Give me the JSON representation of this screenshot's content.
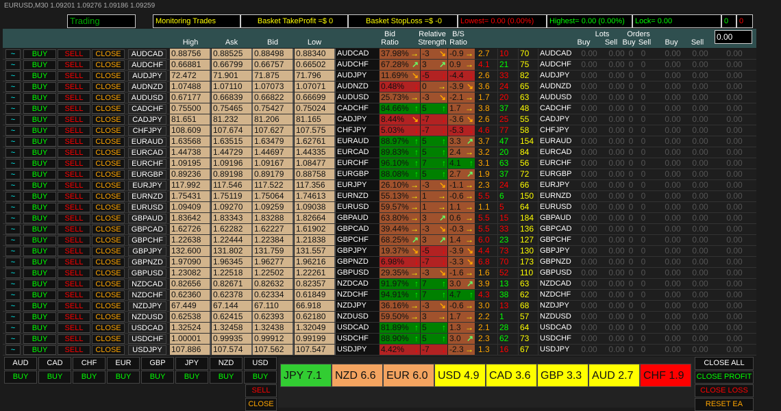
{
  "window": {
    "title": "EURUSD,M30  1.09201 1.09276 1.09186 1.09259"
  },
  "topbar": {
    "status": "Trading",
    "monitoring": "Monitoring Trades",
    "take_profit": "Basket TakeProfit =$ 0",
    "stop_loss": "Basket StopLoss =$ -0",
    "lowest": "Lowest= 0.00 (0.00%)",
    "highest": "Highest= 0.00 (0.00%)",
    "lock": "Lock= 0.00",
    "count_buy": "0",
    "count_sell": "0"
  },
  "header": {
    "high": "High",
    "ask": "Ask",
    "bid": "Bid",
    "low": "Low",
    "bid_ratio_1": "Bid",
    "bid_ratio_2": "Ratio",
    "rel_1": "Relative",
    "rel_2": "Strength",
    "bs_1": "B/S",
    "bs_2": "Ratio",
    "lots": "Lots",
    "orders": "Orders",
    "buy": "Buy",
    "sell": "Sell",
    "lot_value": "0.00"
  },
  "row_buttons": {
    "tilde": "~",
    "buy": "BUY",
    "sell": "SELL",
    "close": "CLOSE"
  },
  "zero2": "0.00",
  "zero0": "0",
  "colors": {
    "tan": "#d2b48c",
    "brown": "#a0522d",
    "red": "#b22222",
    "green": "#008000",
    "yellow": "#ffff00",
    "orange": "#ffa500",
    "header": "#2f4f4f"
  },
  "rows": [
    [
      "AUDCAD",
      "0.88756",
      "0.88525",
      "0.88498",
      "0.88340",
      "37.98%",
      "-3",
      "-0.9",
      "2.7",
      "10",
      "70",
      "r",
      "right",
      "down-right",
      "right"
    ],
    [
      "AUDCHF",
      "0.66881",
      "0.66799",
      "0.66757",
      "0.66502",
      "67.28%",
      "3",
      "0.9",
      "4.1",
      "21",
      "75",
      "g",
      "up-right",
      "up-right",
      "right"
    ],
    [
      "AUDJPY",
      "72.472",
      "71.901",
      "71.875",
      "71.796",
      "11.69%",
      "-5",
      "-4.4",
      "2.6",
      "33",
      "82",
      "r",
      "down-right",
      "down",
      "down"
    ],
    [
      "AUDNZD",
      "1.07488",
      "1.07110",
      "1.07073",
      "1.07071",
      "0.48%",
      "0",
      "-3.9",
      "3.6",
      "24",
      "65",
      "r",
      "down",
      "right",
      "down-right"
    ],
    [
      "AUDUSD",
      "0.67177",
      "0.66839",
      "0.66822",
      "0.66699",
      "25.73%",
      "-3",
      "-2.1",
      "1.7",
      "20",
      "63",
      "r",
      "right",
      "down-right",
      "right"
    ],
    [
      "CADCHF",
      "0.75500",
      "0.75465",
      "0.75427",
      "0.75024",
      "84.66%",
      "5",
      "1.7",
      "3.8",
      "37",
      "48",
      "g",
      "up",
      "up",
      "right"
    ],
    [
      "CADJPY",
      "81.651",
      "81.232",
      "81.206",
      "81.165",
      "8.44%",
      "-7",
      "-3.6",
      "2.6",
      "25",
      "55",
      "r",
      "down-right",
      "down",
      "down-right"
    ],
    [
      "CHFJPY",
      "108.609",
      "107.674",
      "107.627",
      "107.575",
      "5.03%",
      "-7",
      "-5.3",
      "4.6",
      "77",
      "58",
      "r",
      "down",
      "down",
      "down"
    ],
    [
      "EURAUD",
      "1.63568",
      "1.63515",
      "1.63479",
      "1.62761",
      "88.97%",
      "5",
      "3.3",
      "3.7",
      "47",
      "154",
      "g",
      "up",
      "up",
      "up-right"
    ],
    [
      "EURCAD",
      "1.44738",
      "1.44729",
      "1.44697",
      "1.44335",
      "89.83%",
      "5",
      "2.4",
      "3.2",
      "20",
      "84",
      "g",
      "up",
      "up",
      "right"
    ],
    [
      "EURCHF",
      "1.09195",
      "1.09196",
      "1.09167",
      "1.08477",
      "96.10%",
      "7",
      "4.1",
      "3.1",
      "63",
      "56",
      "g",
      "up",
      "up",
      "up"
    ],
    [
      "EURGBP",
      "0.89236",
      "0.89198",
      "0.89179",
      "0.88758",
      "88.08%",
      "5",
      "2.7",
      "1.9",
      "37",
      "72",
      "g",
      "up",
      "up",
      "up-right"
    ],
    [
      "EURJPY",
      "117.992",
      "117.546",
      "117.522",
      "117.356",
      "26.10%",
      "-3",
      "-1.1",
      "2.3",
      "24",
      "66",
      "r",
      "right",
      "down-right",
      "right"
    ],
    [
      "EURNZD",
      "1.75431",
      "1.75119",
      "1.75064",
      "1.74613",
      "55.13%",
      "1",
      "-0.6",
      "5.5",
      "6",
      "150",
      "g",
      "right",
      "right",
      "right"
    ],
    [
      "EURUSD",
      "1.09409",
      "1.09270",
      "1.09259",
      "1.09038",
      "59.57%",
      "1",
      "1.1",
      "1.1",
      "5",
      "64",
      "r",
      "right",
      "right",
      "right"
    ],
    [
      "GBPAUD",
      "1.83642",
      "1.83343",
      "1.83288",
      "1.82664",
      "63.80%",
      "3",
      "0.6",
      "5.5",
      "15",
      "184",
      "r",
      "right",
      "up-right",
      "right"
    ],
    [
      "GBPCAD",
      "1.62726",
      "1.62282",
      "1.62227",
      "1.61902",
      "39.44%",
      "-3",
      "-0.3",
      "5.5",
      "33",
      "136",
      "r",
      "right",
      "down-right",
      "right"
    ],
    [
      "GBPCHF",
      "1.22638",
      "1.22444",
      "1.22384",
      "1.21838",
      "68.25%",
      "3",
      "1.4",
      "6.0",
      "23",
      "127",
      "g",
      "up-right",
      "up-right",
      "right"
    ],
    [
      "GBPJPY",
      "132.600",
      "131.802",
      "131.759",
      "131.557",
      "19.37%",
      "-5",
      "-3.9",
      "4.4",
      "73",
      "130",
      "r",
      "down-right",
      "down",
      "down-right"
    ],
    [
      "GBPNZD",
      "1.97090",
      "1.96345",
      "1.96277",
      "1.96216",
      "6.98%",
      "-7",
      "-3.3",
      "6.8",
      "70",
      "173",
      "r",
      "down",
      "down",
      "down-right"
    ],
    [
      "GBPUSD",
      "1.23082",
      "1.22518",
      "1.22502",
      "1.22261",
      "29.35%",
      "-3",
      "-1.6",
      "1.6",
      "52",
      "110",
      "r",
      "right",
      "down-right",
      "right"
    ],
    [
      "NZDCAD",
      "0.82656",
      "0.82671",
      "0.82632",
      "0.82357",
      "91.97%",
      "7",
      "3.0",
      "3.9",
      "13",
      "63",
      "g",
      "up",
      "up",
      "up-right"
    ],
    [
      "NZDCHF",
      "0.62360",
      "0.62378",
      "0.62334",
      "0.61849",
      "94.91%",
      "7",
      "4.7",
      "4.3",
      "38",
      "62",
      "g",
      "up",
      "up",
      "up"
    ],
    [
      "NZDJPY",
      "67.449",
      "67.144",
      "67.110",
      "66.918",
      "36.16%",
      "-3",
      "-0.6",
      "3.0",
      "13",
      "68",
      "r",
      "right",
      "down-right",
      "right"
    ],
    [
      "NZDUSD",
      "0.62538",
      "0.62415",
      "0.62393",
      "0.62180",
      "59.50%",
      "3",
      "1.7",
      "2.2",
      "1",
      "57",
      "g",
      "right",
      "right",
      "right"
    ],
    [
      "USDCAD",
      "1.32524",
      "1.32458",
      "1.32438",
      "1.32049",
      "81.89%",
      "5",
      "1.3",
      "2.1",
      "28",
      "64",
      "g",
      "up",
      "up",
      "right"
    ],
    [
      "USDCHF",
      "1.00001",
      "0.99935",
      "0.99912",
      "0.99199",
      "88.90%",
      "5",
      "3.0",
      "2.3",
      "62",
      "73",
      "g",
      "up",
      "up",
      "up-right"
    ],
    [
      "USDJPY",
      "107.886",
      "107.574",
      "107.562",
      "107.547",
      "4.42%",
      "-7",
      "-2.3",
      "1.3",
      "16",
      "67",
      "r",
      "down",
      "down",
      "right"
    ]
  ],
  "currencies": [
    "AUD",
    "CAD",
    "CHF",
    "EUR",
    "GBP",
    "JPY",
    "NZD",
    "USD"
  ],
  "bottom": {
    "buy": "BUY",
    "sell": "SELL",
    "close": "CLOSE",
    "close_all": "CLOSE ALL",
    "close_profit": "CLOSE PROFIT",
    "close_loss": "CLOSE LOSS",
    "reset": "RESET EA"
  },
  "strength": [
    {
      "label": "JPY  7.1",
      "color": "#32cd32"
    },
    {
      "label": "NZD  6.6",
      "color": "#f4a460"
    },
    {
      "label": "EUR  6.0",
      "color": "#f4a460"
    },
    {
      "label": "USD 4.9",
      "color": "#ffff00"
    },
    {
      "label": "CAD 3.6",
      "color": "#ffff00"
    },
    {
      "label": "GBP 3.3",
      "color": "#ffff00"
    },
    {
      "label": "AUD 2.7",
      "color": "#ffff00"
    },
    {
      "label": "CHF  1.9",
      "color": "#ff0000"
    }
  ]
}
